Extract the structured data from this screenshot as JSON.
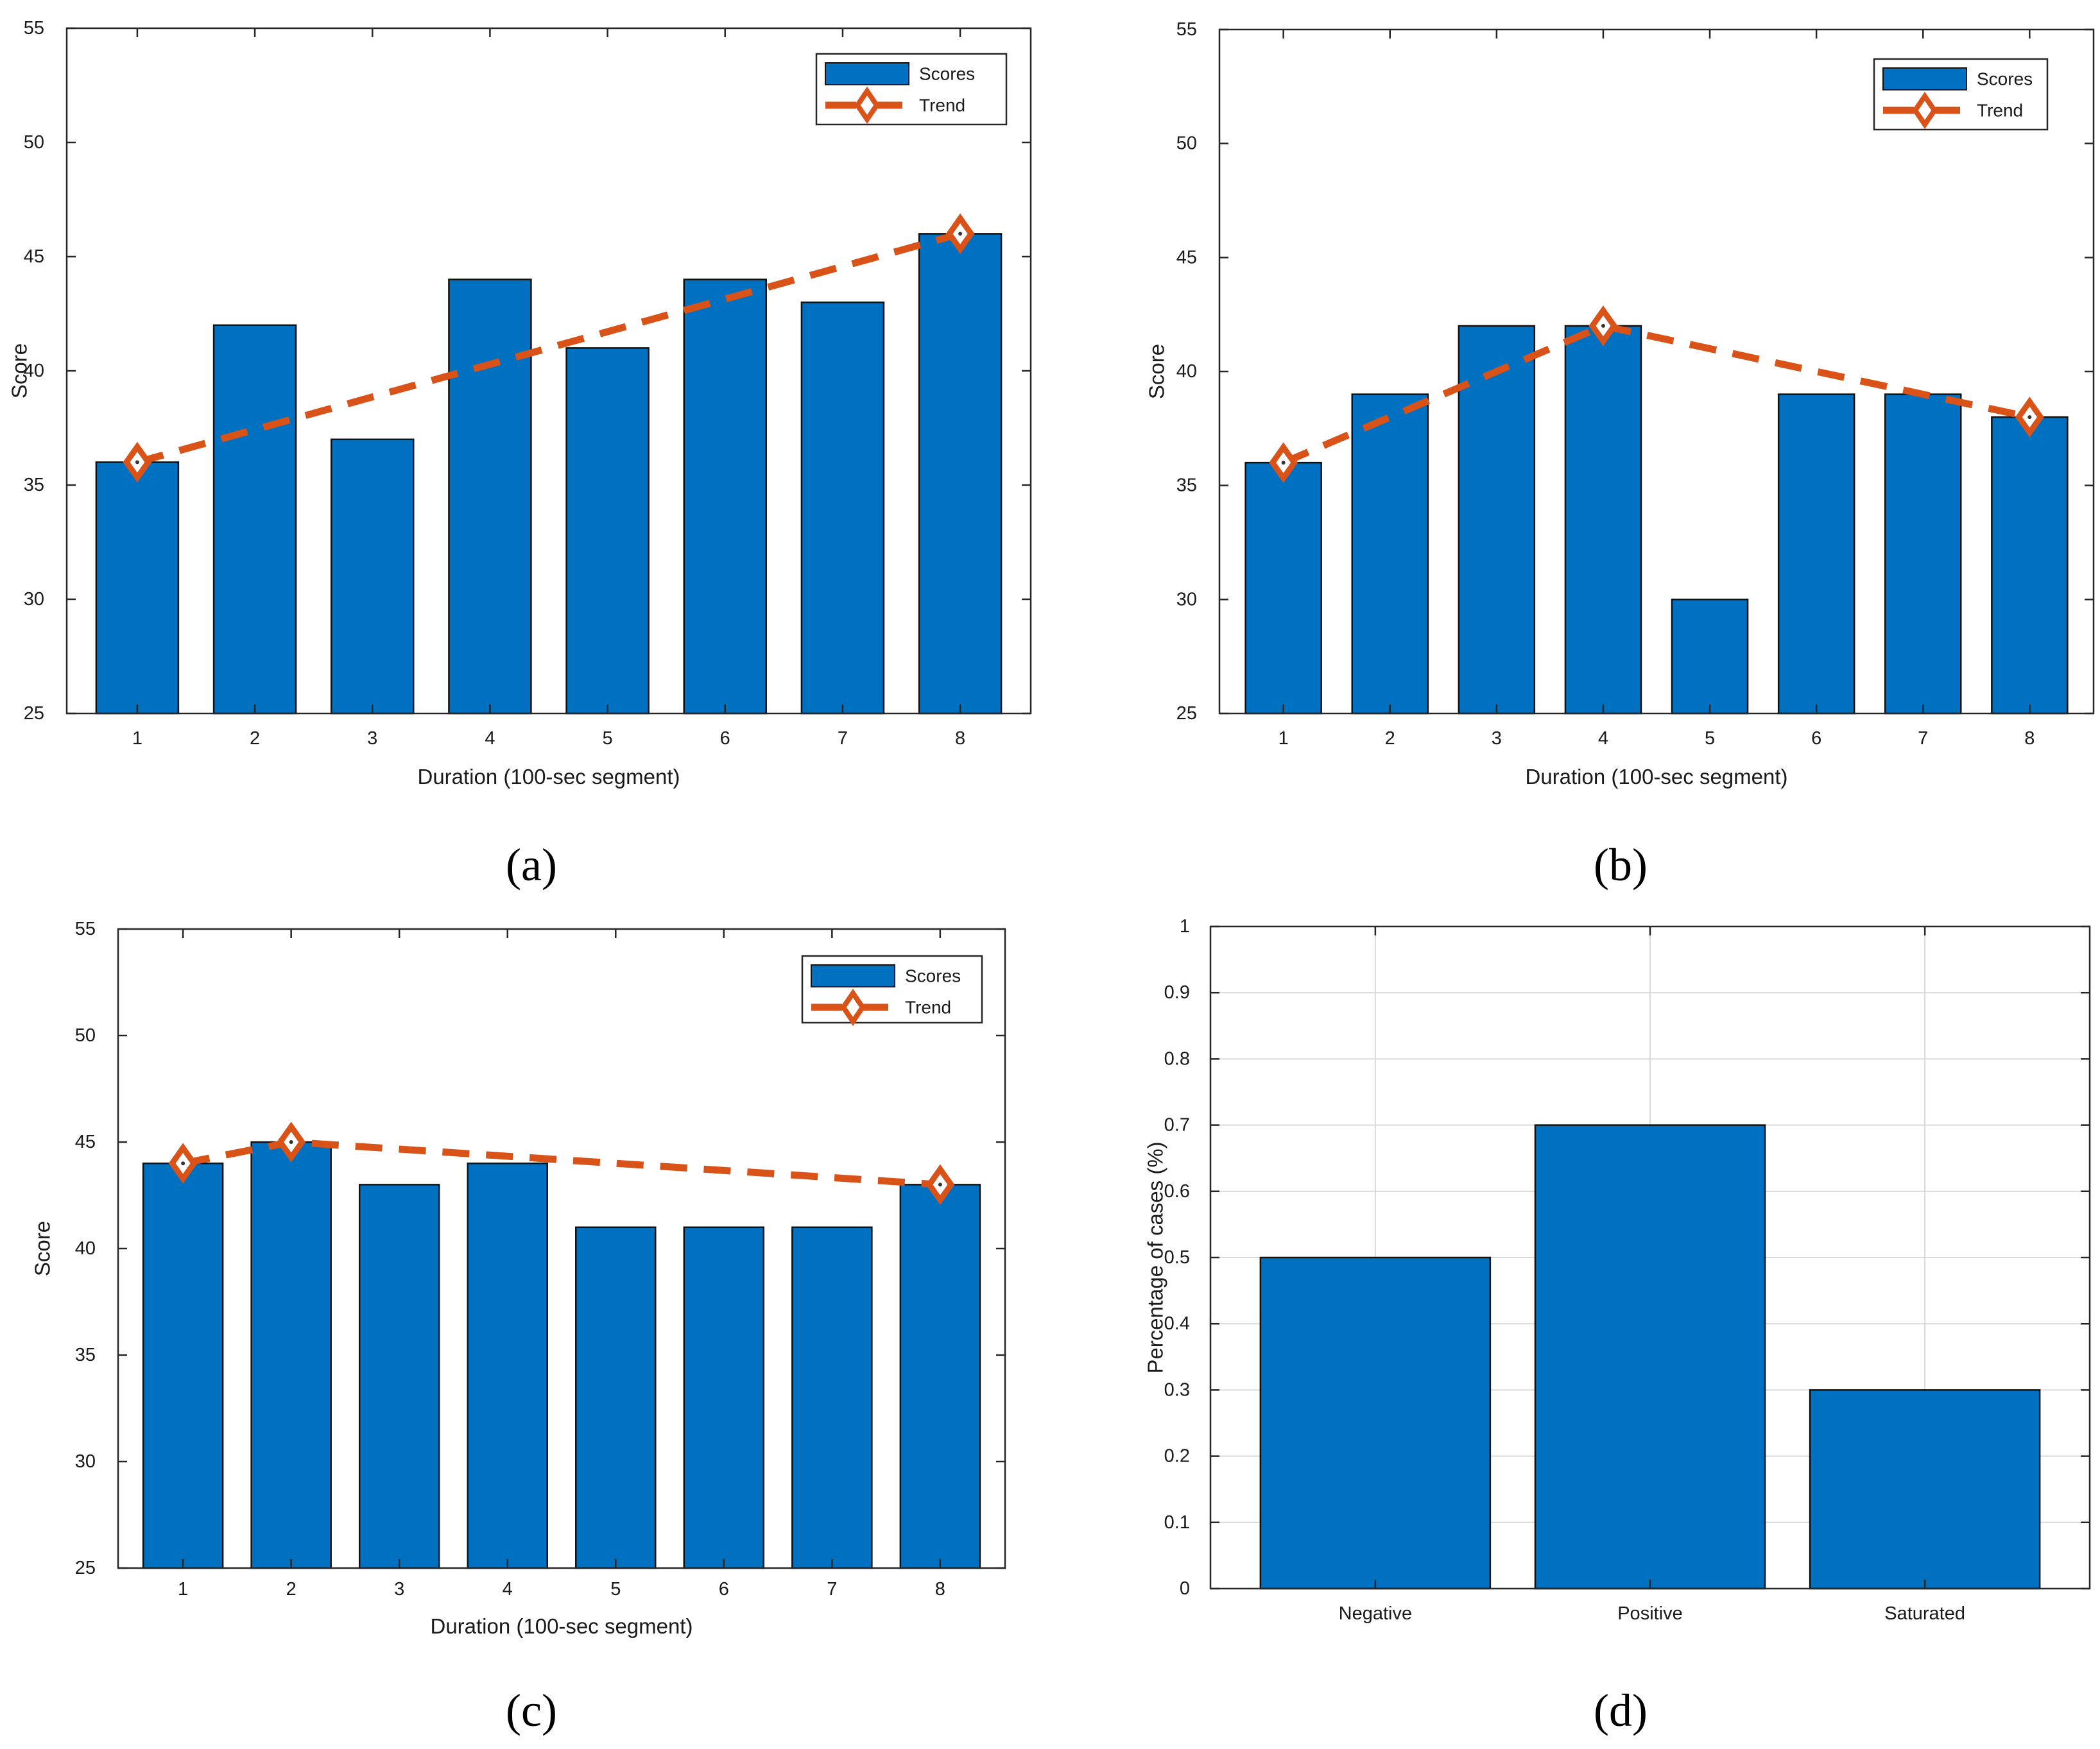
{
  "colors": {
    "bar": "#0070C0",
    "trend": "#D95319",
    "axis": "#262626",
    "grid": "#d9d9d9"
  },
  "chart_data": [
    {
      "id": "a",
      "panel_label": "(a)",
      "type": "bar",
      "categories": [
        "1",
        "2",
        "3",
        "4",
        "5",
        "6",
        "7",
        "8"
      ],
      "series": [
        {
          "name": "Scores",
          "values": [
            36,
            42,
            37,
            44,
            41,
            44,
            43,
            46
          ]
        },
        {
          "name": "Trend",
          "type": "line",
          "style": "dashed",
          "marker": "diamond",
          "points": [
            [
              1,
              36
            ],
            [
              8,
              46
            ]
          ]
        }
      ],
      "legend": [
        "Scores",
        "Trend"
      ],
      "legend_position": "top-right",
      "xlabel": "Duration (100-sec segment)",
      "ylabel": "Score",
      "ylim": [
        25,
        55
      ],
      "yticks": [
        25,
        30,
        35,
        40,
        45,
        50,
        55
      ],
      "grid": false
    },
    {
      "id": "b",
      "panel_label": "(b)",
      "type": "bar",
      "categories": [
        "1",
        "2",
        "3",
        "4",
        "5",
        "6",
        "7",
        "8"
      ],
      "series": [
        {
          "name": "Scores",
          "values": [
            36,
            39,
            42,
            42,
            30,
            39,
            39,
            38
          ]
        },
        {
          "name": "Trend",
          "type": "line",
          "style": "dashed",
          "marker": "diamond",
          "points": [
            [
              1,
              36
            ],
            [
              4,
              42
            ],
            [
              8,
              38
            ]
          ]
        }
      ],
      "legend": [
        "Scores",
        "Trend"
      ],
      "legend_position": "top-right",
      "xlabel": "Duration (100-sec segment)",
      "ylabel": "Score",
      "ylim": [
        25,
        55
      ],
      "yticks": [
        25,
        30,
        35,
        40,
        45,
        50,
        55
      ],
      "grid": false
    },
    {
      "id": "c",
      "panel_label": "(c)",
      "type": "bar",
      "categories": [
        "1",
        "2",
        "3",
        "4",
        "5",
        "6",
        "7",
        "8"
      ],
      "series": [
        {
          "name": "Scores",
          "values": [
            44,
            45,
            43,
            44,
            41,
            41,
            41,
            43
          ]
        },
        {
          "name": "Trend",
          "type": "line",
          "style": "dashed",
          "marker": "diamond",
          "points": [
            [
              1,
              44
            ],
            [
              2,
              45
            ],
            [
              8,
              43
            ]
          ]
        }
      ],
      "legend": [
        "Scores",
        "Trend"
      ],
      "legend_position": "top-right",
      "xlabel": "Duration (100-sec segment)",
      "ylabel": "Score",
      "ylim": [
        25,
        55
      ],
      "yticks": [
        25,
        30,
        35,
        40,
        45,
        50,
        55
      ],
      "grid": false
    },
    {
      "id": "d",
      "panel_label": "(d)",
      "type": "bar",
      "categories": [
        "Negative",
        "Positive",
        "Saturated"
      ],
      "series": [
        {
          "name": "Percentage",
          "values": [
            0.5,
            0.7,
            0.3
          ]
        }
      ],
      "legend": [],
      "xlabel": "",
      "ylabel": "Percentage of cases (%)",
      "ylim": [
        0,
        1
      ],
      "yticks": [
        0,
        0.1,
        0.2,
        0.3,
        0.4,
        0.5,
        0.6,
        0.7,
        0.8,
        0.9,
        1
      ],
      "grid": true
    }
  ]
}
